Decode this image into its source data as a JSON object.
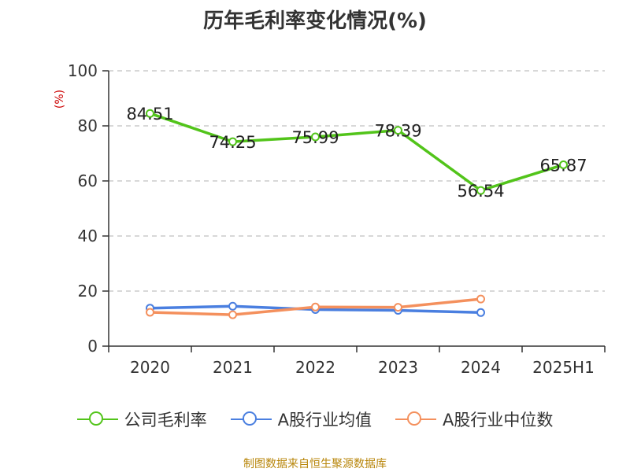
{
  "title": "历年毛利率变化情况(%)",
  "source": "制图数据来自恒生聚源数据库",
  "chart_data": {
    "type": "line",
    "title": "历年毛利率变化情况(%)",
    "ylabel": "(%)",
    "xlabel": "",
    "categories": [
      "2020",
      "2021",
      "2022",
      "2023",
      "2024",
      "2025H1"
    ],
    "ylim": [
      0,
      100
    ],
    "yticks": [
      0,
      20,
      40,
      60,
      80,
      100
    ],
    "grid": "horizontal dashed",
    "legend_position": "bottom",
    "series": [
      {
        "name": "公司毛利率",
        "color": "#52c41a",
        "values": [
          84.51,
          74.25,
          75.99,
          78.39,
          56.54,
          65.87
        ],
        "labels": [
          "84.51",
          "74.25",
          "75.99",
          "78.39",
          "56.54",
          "65.87"
        ]
      },
      {
        "name": "A股行业均值",
        "color": "#4a7fe0",
        "values": [
          13.8,
          14.5,
          13.3,
          13.0,
          12.2,
          null
        ]
      },
      {
        "name": "A股行业中位数",
        "color": "#f4905d",
        "values": [
          12.3,
          11.4,
          14.2,
          14.1,
          17.1,
          null
        ]
      }
    ]
  }
}
